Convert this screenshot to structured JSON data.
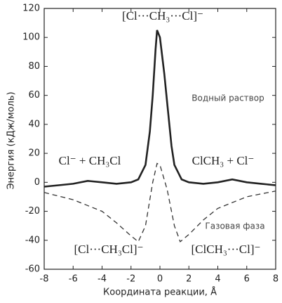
{
  "chart_data": {
    "type": "line",
    "x_label": "Координата реакции, Å",
    "y_label": "Энергия (кДж/моль)",
    "xlim": [
      -8,
      8
    ],
    "xticks": [
      -8,
      -6,
      -4,
      -2,
      0,
      2,
      4,
      6,
      8
    ],
    "ylim": [
      -60,
      120
    ],
    "yticks": [
      -60,
      -40,
      -20,
      0,
      20,
      40,
      60,
      80,
      100,
      120
    ],
    "annotations": [
      "[Cl···CH₃···Cl]⁻",
      "Cl⁻ + CH₃Cl",
      "ClCH₃ + Cl⁻",
      "[Cl···CH₃Cl]⁻",
      "[ClCH₃···Cl]⁻"
    ],
    "series": [
      {
        "name": "Водный раствор",
        "color": "#222222",
        "style": "solid",
        "x": [
          -8,
          -7,
          -6,
          -5,
          -4,
          -3,
          -2,
          -1.5,
          -1,
          -0.7,
          -0.5,
          -0.3,
          -0.2,
          0,
          0.3,
          0.5,
          0.8,
          1,
          1.5,
          2,
          3,
          4,
          5,
          6,
          7,
          8
        ],
        "values": [
          -3,
          -2,
          -1,
          1,
          0,
          -1,
          0,
          2,
          12,
          35,
          60,
          92,
          105,
          100,
          75,
          55,
          25,
          12,
          2,
          0,
          -1,
          0,
          2,
          0,
          -1,
          -2
        ]
      },
      {
        "name": "Газовая фаза",
        "color": "#333333",
        "style": "dashed",
        "x": [
          -8,
          -6,
          -4,
          -3,
          -2,
          -1.5,
          -1,
          -0.5,
          -0.2,
          0,
          0.5,
          1,
          1.4,
          2,
          3,
          4,
          6,
          8
        ],
        "values": [
          -7,
          -12,
          -20,
          -28,
          -37,
          -41,
          -30,
          0,
          13,
          12,
          -5,
          -30,
          -41,
          -36,
          -26,
          -18,
          -10,
          -6
        ]
      }
    ]
  }
}
